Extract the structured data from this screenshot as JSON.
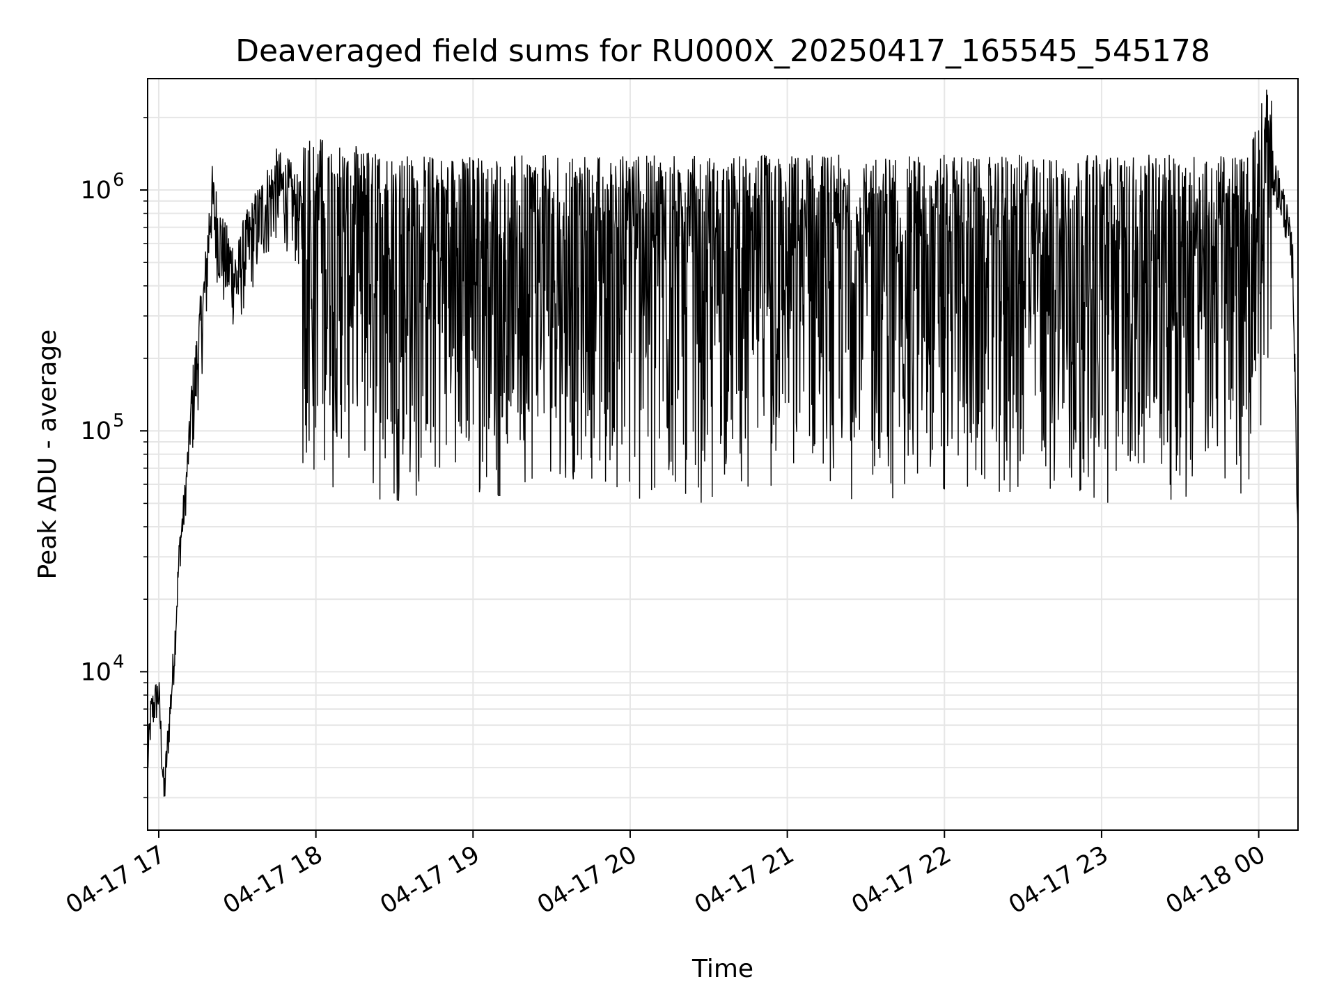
{
  "chart_data": {
    "type": "line",
    "title": "Deaveraged field sums for RU000X_20250417_165545_545178",
    "xlabel": "Time",
    "ylabel": "Peak ADU - average",
    "yscale": "log",
    "ylim": [
      2200,
      2900000
    ],
    "xlim": [
      "2025-04-17 16:55:45",
      "2025-04-18 00:15:00"
    ],
    "x_ticks": [
      "04-17 17",
      "04-17 18",
      "04-17 19",
      "04-17 20",
      "04-17 21",
      "04-17 22",
      "04-17 23",
      "04-18 00"
    ],
    "x_tick_times": [
      "2025-04-17 17:00",
      "2025-04-17 18:00",
      "2025-04-17 19:00",
      "2025-04-17 20:00",
      "2025-04-17 21:00",
      "2025-04-17 22:00",
      "2025-04-17 23:00",
      "2025-04-18 00:00"
    ],
    "y_ticks": [
      {
        "base": "10",
        "exp": "4",
        "value": 10000
      },
      {
        "base": "10",
        "exp": "5",
        "value": 100000
      },
      {
        "base": "10",
        "exp": "6",
        "value": 1000000
      }
    ],
    "grid": true,
    "line_color": "#000000",
    "grid_color": "#e6e6e6",
    "series": [
      {
        "x": [
          "2025-04-17 16:55:45",
          "2025-04-17 16:57:00",
          "2025-04-17 16:59:00",
          "2025-04-17 17:00:00",
          "2025-04-17 17:02:00",
          "2025-04-17 17:04:00",
          "2025-04-17 17:06:00",
          "2025-04-17 17:07:00",
          "2025-04-17 17:08:00",
          "2025-04-17 17:10:00",
          "2025-04-17 17:12:00",
          "2025-04-17 17:15:00",
          "2025-04-17 17:18:00",
          "2025-04-17 17:20:00",
          "2025-04-17 17:22:00",
          "2025-04-17 17:25:00",
          "2025-04-17 17:28:00",
          "2025-04-17 17:30:00",
          "2025-04-17 17:32:00",
          "2025-04-17 17:35:00",
          "2025-04-17 17:40:00",
          "2025-04-17 17:45:00",
          "2025-04-17 17:50:00",
          "2025-04-17 17:55:00",
          "2025-04-17 18:00:00",
          "2025-04-17 18:30:00",
          "2025-04-17 19:00:00",
          "2025-04-17 19:30:00",
          "2025-04-17 20:00:00",
          "2025-04-17 20:30:00",
          "2025-04-17 21:00:00",
          "2025-04-17 21:30:00",
          "2025-04-17 22:00:00",
          "2025-04-17 22:30:00",
          "2025-04-17 23:00:00",
          "2025-04-17 23:30:00",
          "2025-04-17 23:55:00",
          "2025-04-18 00:05:00",
          "2025-04-18 00:10:00",
          "2025-04-18 00:13:00",
          "2025-04-18 00:15:00"
        ],
        "y": [
          4000,
          6500,
          7500,
          8000,
          3000,
          6000,
          12000,
          20000,
          32000,
          50000,
          100000,
          200000,
          400000,
          900000,
          700000,
          500000,
          450000,
          400000,
          500000,
          600000,
          800000,
          1000000,
          900000,
          700000,
          600000,
          500000,
          500000,
          500000,
          500000,
          500000,
          500000,
          500000,
          500000,
          500000,
          500000,
          500000,
          500000,
          1200000,
          800000,
          500000,
          35000
        ]
      }
    ]
  }
}
